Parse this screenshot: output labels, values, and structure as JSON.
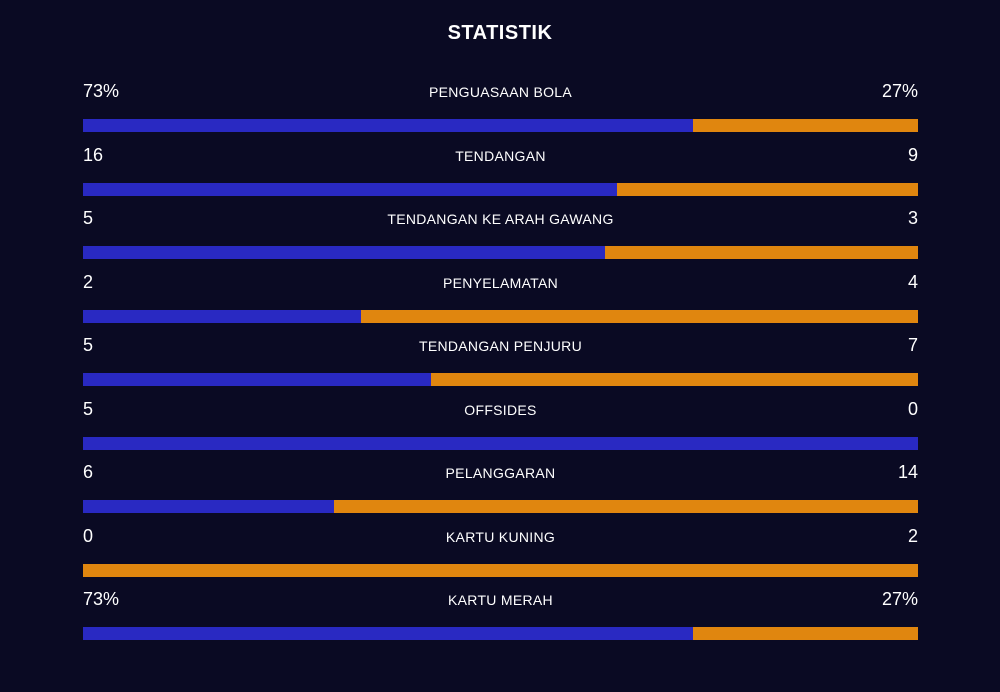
{
  "title": "STATISTIK",
  "colors": {
    "background": "#0a0a23",
    "home_bar": "#2929c2",
    "away_bar": "#e0860f"
  },
  "stats": [
    {
      "label": "PENGUASAAN BOLA",
      "home": "73%",
      "away": "27%",
      "home_share": 0.73
    },
    {
      "label": "TENDANGAN",
      "home": "16",
      "away": "9",
      "home_share": 0.64
    },
    {
      "label": "TENDANGAN KE ARAH GAWANG",
      "home": "5",
      "away": "3",
      "home_share": 0.625
    },
    {
      "label": "PENYELAMATAN",
      "home": "2",
      "away": "4",
      "home_share": 0.333
    },
    {
      "label": "TENDANGAN PENJURU",
      "home": "5",
      "away": "7",
      "home_share": 0.417
    },
    {
      "label": "OFFSIDES",
      "home": "5",
      "away": "0",
      "home_share": 1.0
    },
    {
      "label": "PELANGGARAN",
      "home": "6",
      "away": "14",
      "home_share": 0.3
    },
    {
      "label": "KARTU KUNING",
      "home": "0",
      "away": "2",
      "home_share": 0.0
    },
    {
      "label": "KARTU MERAH",
      "home": "73%",
      "away": "27%",
      "home_share": 0.73
    }
  ]
}
